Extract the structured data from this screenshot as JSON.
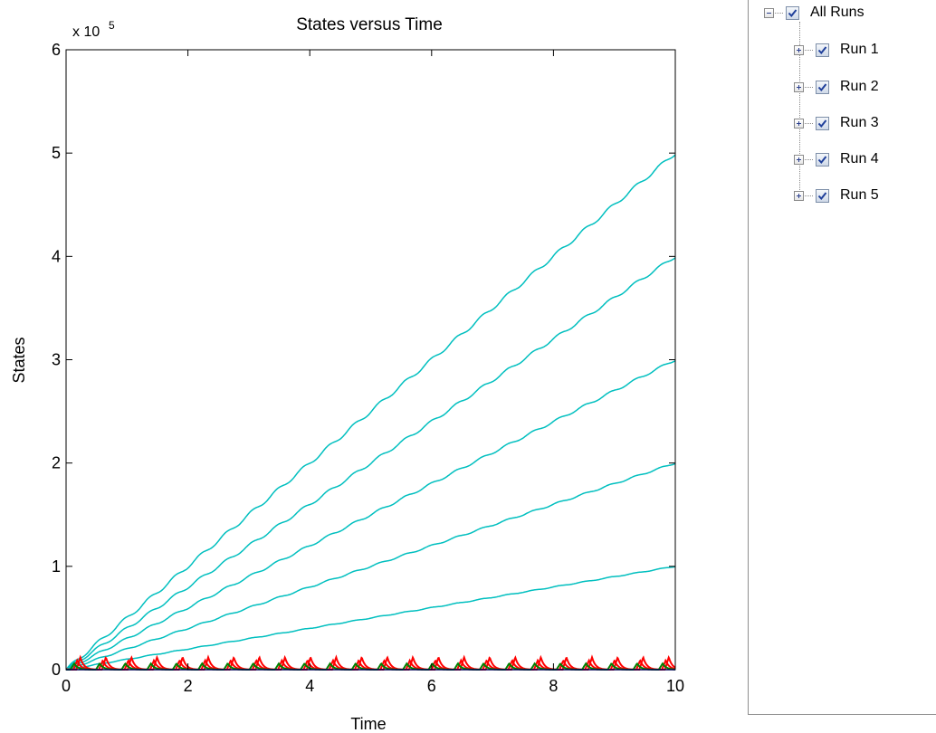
{
  "chart_data": {
    "type": "line",
    "title": "States versus Time",
    "xlabel": "Time",
    "ylabel": "States",
    "y_exponent_label": "x 10",
    "y_exponent": "5",
    "xlim": [
      0,
      10
    ],
    "ylim": [
      0,
      600000
    ],
    "x_ticks": [
      0,
      2,
      4,
      6,
      8,
      10
    ],
    "y_ticks": [
      0,
      100000,
      200000,
      300000,
      400000,
      500000,
      600000
    ],
    "y_tick_labels": [
      "0",
      "1",
      "2",
      "3",
      "4",
      "5",
      "6"
    ],
    "x_tick_labels": [
      "0",
      "2",
      "4",
      "6",
      "8",
      "10"
    ],
    "grid": false,
    "series": [
      {
        "color": "#00bfbf",
        "kind": "rising",
        "x": [
          0,
          10
        ],
        "y": [
          0,
          100000
        ]
      },
      {
        "color": "#00bfbf",
        "kind": "rising",
        "x": [
          0,
          10
        ],
        "y": [
          0,
          200000
        ]
      },
      {
        "color": "#00bfbf",
        "kind": "rising",
        "x": [
          0,
          10
        ],
        "y": [
          0,
          300000
        ]
      },
      {
        "color": "#00bfbf",
        "kind": "rising",
        "x": [
          0,
          10
        ],
        "y": [
          0,
          400000
        ]
      },
      {
        "color": "#00bfbf",
        "kind": "rising",
        "x": [
          0,
          10
        ],
        "y": [
          0,
          500000
        ]
      },
      {
        "color": "#ff0000",
        "kind": "oscillating",
        "peak": 12000,
        "period": 0.42
      },
      {
        "color": "#ff0000",
        "kind": "oscillating",
        "peak": 9000,
        "period": 0.42
      },
      {
        "color": "#008000",
        "kind": "oscillating",
        "peak": 6000,
        "period": 0.42
      },
      {
        "color": "#0000ff",
        "kind": "baseline",
        "x": [
          0,
          10
        ],
        "y": [
          0,
          0
        ]
      }
    ]
  },
  "tree": {
    "root": {
      "label": "All Runs",
      "checked": true,
      "expanded": true
    },
    "children": [
      {
        "label": "Run 1",
        "checked": true
      },
      {
        "label": "Run 2",
        "checked": true
      },
      {
        "label": "Run 3",
        "checked": true
      },
      {
        "label": "Run 4",
        "checked": true
      },
      {
        "label": "Run 5",
        "checked": true
      }
    ]
  }
}
